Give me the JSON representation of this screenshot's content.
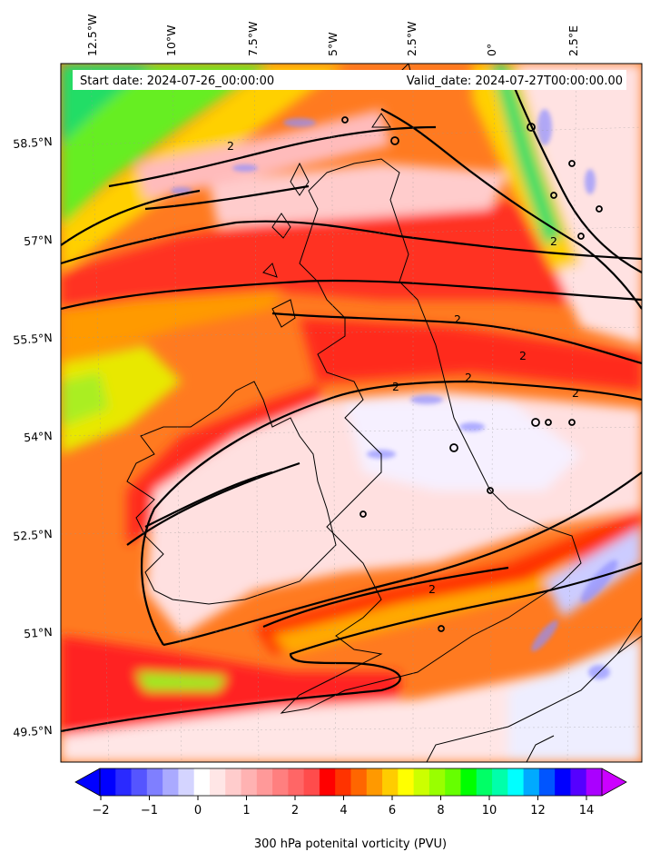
{
  "header": {
    "start_date": "Start date: 2024-07-26_00:00:00",
    "valid_date": "Valid_date: 2024-07-27T00:00:00.00"
  },
  "axes": {
    "lon_labels": [
      "12.5°W",
      "10°W",
      "7.5°W",
      "5°W",
      "2.5°W",
      "0°",
      "2.5°E"
    ],
    "lat_labels": [
      "58.5°N",
      "57°N",
      "55.5°N",
      "54°N",
      "52.5°N",
      "51°N",
      "49.5°N"
    ]
  },
  "contour_label": "2",
  "colorbar": {
    "ticks": [
      "−2",
      "−1",
      "0",
      "1",
      "2",
      "4",
      "6",
      "8",
      "10",
      "12",
      "14"
    ],
    "label": "300 hPa potenital vorticity (PVU)",
    "colors": [
      "#0000ff",
      "#2a2aff",
      "#5555ff",
      "#7f7fff",
      "#aaaaff",
      "#d4d4ff",
      "#ffffff",
      "#ffe6e6",
      "#ffcccc",
      "#ffb2b2",
      "#ff9999",
      "#ff7f7f",
      "#ff6666",
      "#ff4c4c",
      "#ff0000",
      "#ff3300",
      "#ff6600",
      "#ff9900",
      "#ffcc00",
      "#ffff00",
      "#ccff00",
      "#99ff00",
      "#66ff00",
      "#00ff00",
      "#00ff66",
      "#00ffaa",
      "#00ffff",
      "#00aaff",
      "#0055ff",
      "#0000ff",
      "#5500ff",
      "#aa00ff"
    ],
    "extend_low_color": "#0000ff",
    "extend_high_color": "#cc00ff"
  },
  "colors": {
    "high_pv": "#ff0000",
    "low_pv": "#ffffff",
    "coast": "#000000"
  }
}
